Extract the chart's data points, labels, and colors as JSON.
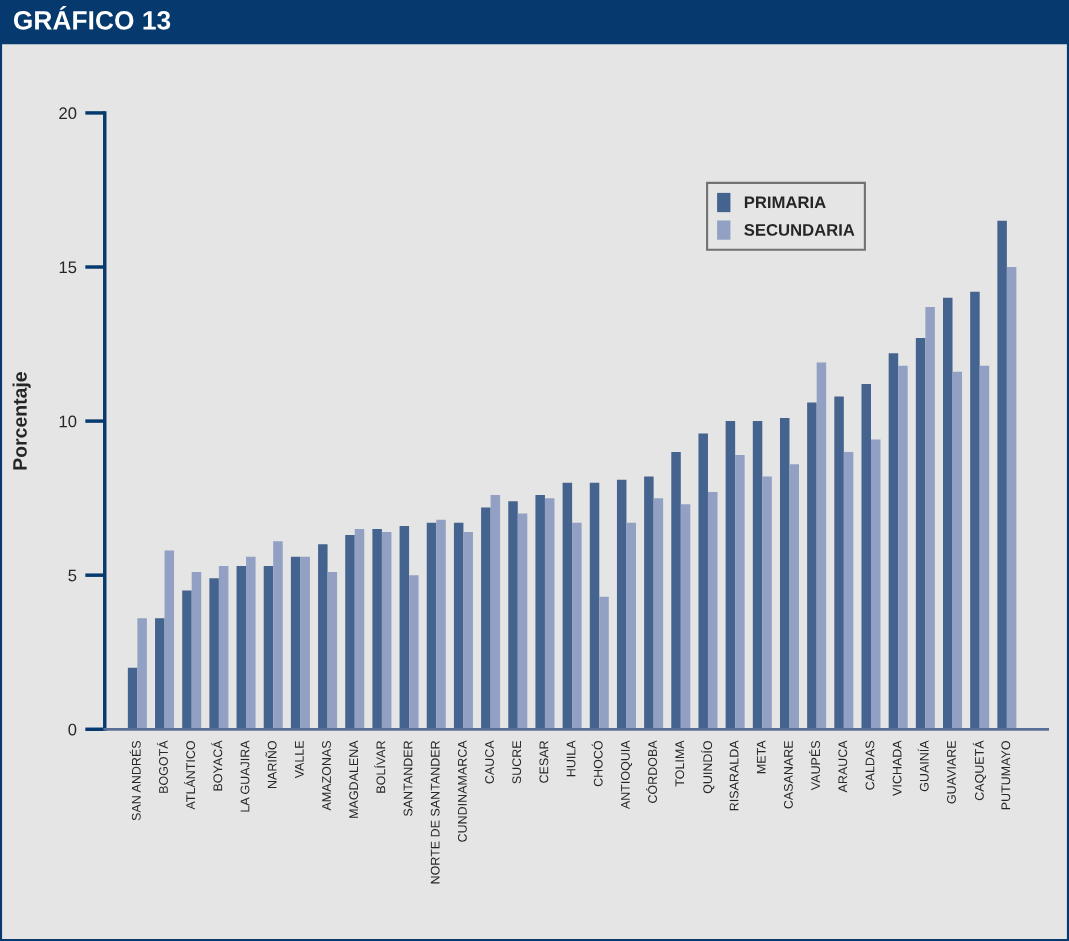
{
  "chart_data": {
    "type": "bar",
    "title": "GRÁFICO 13",
    "ylabel": "Porcentaje",
    "categories": [
      "SAN ANDRÉS",
      "BOGOTÁ",
      "ATLÁNTICO",
      "BOYACÁ",
      "LA GUAJIRA",
      "NARIÑO",
      "VALLE",
      "AMAZONAS",
      "MAGDALENA",
      "BOLÍVAR",
      "SANTANDER",
      "NORTE DE SANTANDER",
      "CUNDINAMARCA",
      "CAUCA",
      "SUCRE",
      "CESAR",
      "HUILA",
      "CHOCÓ",
      "ANTIOQUIA",
      "CÓRDOBA",
      "TOLIMA",
      "QUINDÍO",
      "RISARALDA",
      "META",
      "CASANARE",
      "VAUPÉS",
      "ARAUCA",
      "CALDAS",
      "VICHADA",
      "GUAINÍA",
      "GUAVIARE",
      "CAQUETÁ",
      "PUTUMAYO"
    ],
    "series": [
      {
        "name": "PRIMARIA",
        "color": "#44638f",
        "values": [
          2.0,
          3.6,
          4.5,
          4.9,
          5.3,
          5.3,
          5.6,
          6.0,
          6.3,
          6.5,
          6.6,
          6.7,
          6.7,
          7.2,
          7.4,
          7.6,
          8.0,
          8.0,
          8.1,
          8.2,
          9.0,
          9.6,
          10.0,
          10.0,
          10.1,
          10.6,
          10.8,
          11.2,
          12.2,
          12.7,
          14.0,
          14.2,
          16.5
        ]
      },
      {
        "name": "SECUNDARIA",
        "color": "#91a0c3",
        "values": [
          3.6,
          5.8,
          5.1,
          5.3,
          5.6,
          6.1,
          5.6,
          5.1,
          6.5,
          6.4,
          5.0,
          6.8,
          6.4,
          7.6,
          7.0,
          7.5,
          6.7,
          4.3,
          6.7,
          7.5,
          7.3,
          7.7,
          8.9,
          8.2,
          8.6,
          11.9,
          9.0,
          9.4,
          11.8,
          13.7,
          11.6,
          11.8,
          15.0
        ]
      }
    ],
    "ylim": [
      0,
      20
    ],
    "yticks": [
      0,
      5,
      10,
      15,
      20
    ],
    "grid": false,
    "legend": "top right"
  }
}
